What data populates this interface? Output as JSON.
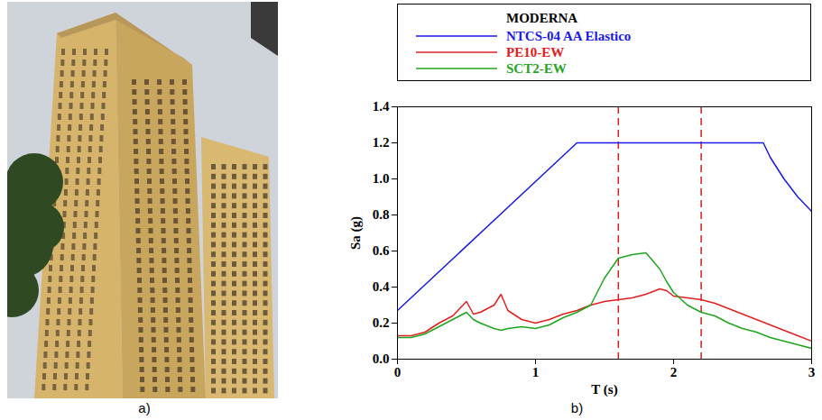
{
  "photo_panel": {
    "label": "a)"
  },
  "chart_data": {
    "type": "line",
    "panel_label": "b)",
    "title": "MODERNA",
    "x_label": "T (s)",
    "y_label": "Sa (g)",
    "xlim": [
      0,
      3
    ],
    "xticks": [
      0,
      1,
      2,
      3
    ],
    "ylim": [
      0,
      1.4
    ],
    "yticks": [
      {
        "value": 0,
        "label": "0.0"
      },
      {
        "value": 0.2,
        "label": "0.2"
      },
      {
        "value": 0.4,
        "label": "0.4"
      },
      {
        "value": 0.6,
        "label": "0.6"
      },
      {
        "value": 0.8,
        "label": "0.8"
      },
      {
        "value": 1.0,
        "label": "1.0"
      },
      {
        "value": 1.2,
        "label": "1.2"
      },
      {
        "value": 1.4,
        "label": "1.4"
      }
    ],
    "grid": false,
    "legend": "top",
    "series": [
      {
        "name": "NTCS-04 AA Elastico",
        "color": "#1a1ae6",
        "line_style": "solid",
        "x": [
          0,
          1.3,
          2.65,
          2.7,
          2.8,
          2.9,
          3.0
        ],
        "values": [
          0.27,
          1.2,
          1.2,
          1.12,
          1.0,
          0.9,
          0.82
        ]
      },
      {
        "name": "PE10-EW",
        "color": "#e02020",
        "line_style": "solid",
        "x": [
          0,
          0.1,
          0.2,
          0.3,
          0.4,
          0.45,
          0.5,
          0.55,
          0.6,
          0.7,
          0.75,
          0.8,
          0.9,
          1.0,
          1.1,
          1.2,
          1.3,
          1.4,
          1.5,
          1.6,
          1.7,
          1.8,
          1.9,
          1.95,
          2.0,
          2.1,
          2.2,
          2.3,
          2.4,
          2.5,
          2.6,
          2.7,
          2.8,
          2.9,
          3.0
        ],
        "values": [
          0.13,
          0.13,
          0.15,
          0.2,
          0.24,
          0.28,
          0.32,
          0.25,
          0.26,
          0.3,
          0.36,
          0.27,
          0.22,
          0.2,
          0.22,
          0.25,
          0.27,
          0.3,
          0.32,
          0.33,
          0.34,
          0.36,
          0.39,
          0.38,
          0.35,
          0.34,
          0.33,
          0.31,
          0.28,
          0.25,
          0.22,
          0.19,
          0.16,
          0.13,
          0.1
        ]
      },
      {
        "name": "SCT2-EW",
        "color": "#1fa51f",
        "line_style": "solid",
        "x": [
          0,
          0.1,
          0.2,
          0.3,
          0.4,
          0.45,
          0.5,
          0.55,
          0.6,
          0.7,
          0.75,
          0.8,
          0.9,
          1.0,
          1.1,
          1.2,
          1.3,
          1.4,
          1.5,
          1.6,
          1.7,
          1.8,
          1.9,
          1.95,
          2.0,
          2.1,
          2.2,
          2.3,
          2.4,
          2.5,
          2.6,
          2.7,
          2.8,
          2.9,
          3.0
        ],
        "values": [
          0.12,
          0.12,
          0.14,
          0.18,
          0.22,
          0.24,
          0.26,
          0.22,
          0.2,
          0.17,
          0.16,
          0.17,
          0.18,
          0.17,
          0.19,
          0.23,
          0.26,
          0.3,
          0.45,
          0.56,
          0.58,
          0.59,
          0.5,
          0.43,
          0.37,
          0.3,
          0.26,
          0.24,
          0.2,
          0.17,
          0.15,
          0.12,
          0.1,
          0.08,
          0.06
        ]
      }
    ],
    "reference_lines": {
      "x": [
        1.6,
        2.2
      ],
      "color": "#d02020",
      "line_style": "dashed"
    }
  }
}
